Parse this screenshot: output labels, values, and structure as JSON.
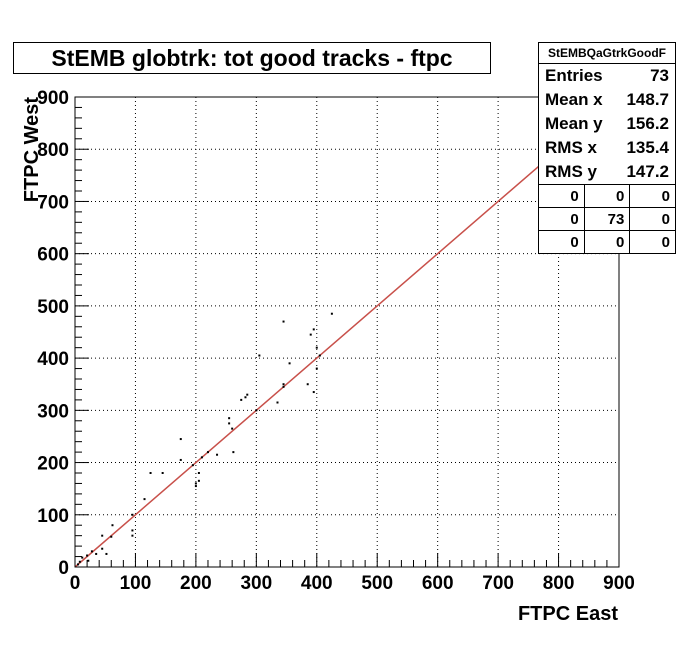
{
  "title": "StEMB globtrk: tot good tracks - ftpc",
  "stats": {
    "name": "StEMBQaGtrkGoodF",
    "rows": [
      {
        "label": "Entries",
        "value": "73"
      },
      {
        "label": "Mean x",
        "value": "148.7"
      },
      {
        "label": "Mean y",
        "value": "156.2"
      },
      {
        "label": "RMS x",
        "value": "135.4"
      },
      {
        "label": "RMS y",
        "value": "147.2"
      }
    ],
    "grid": [
      [
        "0",
        "0",
        "0"
      ],
      [
        "0",
        "73",
        "0"
      ],
      [
        "0",
        "0",
        "0"
      ]
    ]
  },
  "colors": {
    "line": "#c8504a",
    "points": "#000000",
    "axis": "#000000",
    "grid": "#000000"
  },
  "chart_data": {
    "type": "scatter",
    "title": "StEMB globtrk: tot good tracks - ftpc",
    "xlabel": "FTPC East",
    "ylabel": "FTPC West",
    "xlim": [
      0,
      900
    ],
    "ylim": [
      0,
      900
    ],
    "xticks": [
      "0",
      "100",
      "200",
      "300",
      "400",
      "500",
      "600",
      "700",
      "800",
      "900"
    ],
    "yticks": [
      "0",
      "100",
      "200",
      "300",
      "400",
      "500",
      "600",
      "700",
      "800",
      "900"
    ],
    "grid": true,
    "points": [
      [
        5,
        5
      ],
      [
        8,
        10
      ],
      [
        12,
        18
      ],
      [
        20,
        22
      ],
      [
        28,
        30
      ],
      [
        22,
        12
      ],
      [
        35,
        25
      ],
      [
        45,
        60
      ],
      [
        45,
        35
      ],
      [
        52,
        25
      ],
      [
        60,
        58
      ],
      [
        62,
        80
      ],
      [
        95,
        100
      ],
      [
        95,
        70
      ],
      [
        95,
        60
      ],
      [
        115,
        130
      ],
      [
        125,
        180
      ],
      [
        145,
        180
      ],
      [
        175,
        245
      ],
      [
        175,
        205
      ],
      [
        195,
        195
      ],
      [
        200,
        155
      ],
      [
        200,
        160
      ],
      [
        205,
        180
      ],
      [
        205,
        165
      ],
      [
        210,
        210
      ],
      [
        220,
        220
      ],
      [
        235,
        215
      ],
      [
        255,
        285
      ],
      [
        255,
        275
      ],
      [
        260,
        265
      ],
      [
        262,
        220
      ],
      [
        275,
        320
      ],
      [
        282,
        325
      ],
      [
        285,
        330
      ],
      [
        300,
        300
      ],
      [
        305,
        405
      ],
      [
        335,
        315
      ],
      [
        345,
        350
      ],
      [
        345,
        470
      ],
      [
        345,
        345
      ],
      [
        355,
        390
      ],
      [
        385,
        350
      ],
      [
        390,
        445
      ],
      [
        395,
        455
      ],
      [
        395,
        335
      ],
      [
        400,
        420
      ],
      [
        400,
        380
      ],
      [
        405,
        405
      ],
      [
        425,
        485
      ]
    ],
    "reference_line": {
      "x": [
        0,
        900
      ],
      "y": [
        0,
        900
      ]
    }
  }
}
